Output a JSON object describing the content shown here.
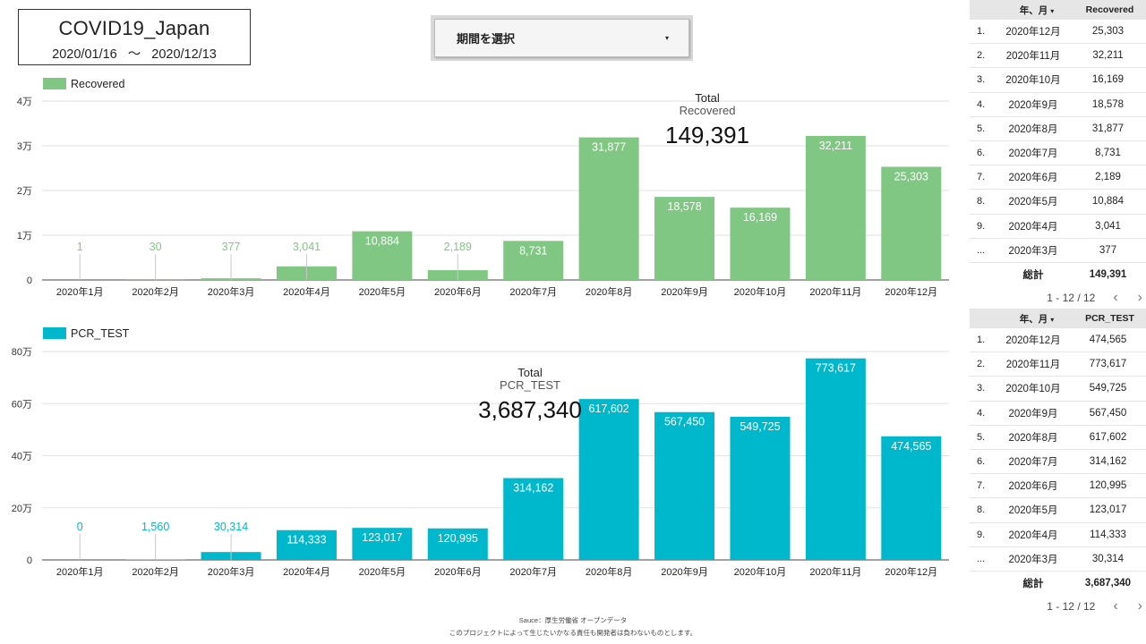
{
  "header": {
    "title": "COVID19_Japan",
    "date_start": "2020/01/16",
    "date_sep": "〜",
    "date_end": "2020/12/13"
  },
  "period_selector": {
    "label": "期間を選択",
    "caret": "▾"
  },
  "chart_data": [
    {
      "type": "bar",
      "legend": "Recovered",
      "color": "#81c784",
      "categories": [
        "2020年1月",
        "2020年2月",
        "2020年3月",
        "2020年4月",
        "2020年5月",
        "2020年6月",
        "2020年7月",
        "2020年8月",
        "2020年9月",
        "2020年10月",
        "2020年11月",
        "2020年12月"
      ],
      "values": [
        1,
        30,
        377,
        3041,
        10884,
        2189,
        8731,
        31877,
        18578,
        16169,
        32211,
        25303
      ],
      "value_labels": [
        "1",
        "30",
        "377",
        "3,041",
        "10,884",
        "2,189",
        "8,731",
        "31,877",
        "18,578",
        "16,169",
        "32,211",
        "25,303"
      ],
      "y_ticks": [
        0,
        10000,
        20000,
        30000,
        40000
      ],
      "y_tick_labels": [
        "0",
        "1万",
        "2万",
        "3万",
        "4万"
      ],
      "ylim": [
        0,
        40000
      ],
      "grid": true,
      "legend_position": "top-left",
      "total": {
        "title": "Total",
        "metric": "Recovered",
        "value": "149,391"
      }
    },
    {
      "type": "bar",
      "legend": "PCR_TEST",
      "color": "#00b8cc",
      "categories": [
        "2020年1月",
        "2020年2月",
        "2020年3月",
        "2020年4月",
        "2020年5月",
        "2020年6月",
        "2020年7月",
        "2020年8月",
        "2020年9月",
        "2020年10月",
        "2020年11月",
        "2020年12月"
      ],
      "values": [
        0,
        1560,
        30314,
        114333,
        123017,
        120995,
        314162,
        617602,
        567450,
        549725,
        773617,
        474565
      ],
      "value_labels": [
        "0",
        "1,560",
        "30,314",
        "114,333",
        "123,017",
        "120,995",
        "314,162",
        "617,602",
        "567,450",
        "549,725",
        "773,617",
        "474,565"
      ],
      "y_ticks": [
        0,
        200000,
        400000,
        600000,
        800000
      ],
      "y_tick_labels": [
        "0",
        "20万",
        "40万",
        "60万",
        "80万"
      ],
      "ylim": [
        0,
        800000
      ],
      "grid": true,
      "legend_position": "top-left",
      "total": {
        "title": "Total",
        "metric": "PCR_TEST",
        "value": "3,687,340"
      }
    }
  ],
  "tables": [
    {
      "col_month": "年、月",
      "col_value": "Recovered",
      "sort_icon": "▾",
      "rows": [
        {
          "idx": "1.",
          "month": "2020年12月",
          "value": "25,303"
        },
        {
          "idx": "2.",
          "month": "2020年11月",
          "value": "32,211"
        },
        {
          "idx": "3.",
          "month": "2020年10月",
          "value": "16,169"
        },
        {
          "idx": "4.",
          "month": "2020年9月",
          "value": "18,578"
        },
        {
          "idx": "5.",
          "month": "2020年8月",
          "value": "31,877"
        },
        {
          "idx": "6.",
          "month": "2020年7月",
          "value": "8,731"
        },
        {
          "idx": "7.",
          "month": "2020年6月",
          "value": "2,189"
        },
        {
          "idx": "8.",
          "month": "2020年5月",
          "value": "10,884"
        },
        {
          "idx": "9.",
          "month": "2020年4月",
          "value": "3,041"
        },
        {
          "idx": "...",
          "month": "2020年3月",
          "value": "377"
        }
      ],
      "total_label": "総計",
      "total_value": "149,391",
      "pager": "1 - 12 / 12",
      "prev": "‹",
      "next": "›"
    },
    {
      "col_month": "年、月",
      "col_value": "PCR_TEST",
      "sort_icon": "▾",
      "rows": [
        {
          "idx": "1.",
          "month": "2020年12月",
          "value": "474,565"
        },
        {
          "idx": "2.",
          "month": "2020年11月",
          "value": "773,617"
        },
        {
          "idx": "3.",
          "month": "2020年10月",
          "value": "549,725"
        },
        {
          "idx": "4.",
          "month": "2020年9月",
          "value": "567,450"
        },
        {
          "idx": "5.",
          "month": "2020年8月",
          "value": "617,602"
        },
        {
          "idx": "6.",
          "month": "2020年7月",
          "value": "314,162"
        },
        {
          "idx": "7.",
          "month": "2020年6月",
          "value": "120,995"
        },
        {
          "idx": "8.",
          "month": "2020年5月",
          "value": "123,017"
        },
        {
          "idx": "9.",
          "month": "2020年4月",
          "value": "114,333"
        },
        {
          "idx": "...",
          "month": "2020年3月",
          "value": "30,314"
        }
      ],
      "total_label": "総計",
      "total_value": "3,687,340",
      "pager": "1 - 12 / 12",
      "prev": "‹",
      "next": "›"
    }
  ],
  "footer": {
    "source": "Sauce：厚生労働省 オープンデータ",
    "disclaimer": "このプロジェクトによって生じたいかなる責任も開発者は負わないものとします。"
  }
}
